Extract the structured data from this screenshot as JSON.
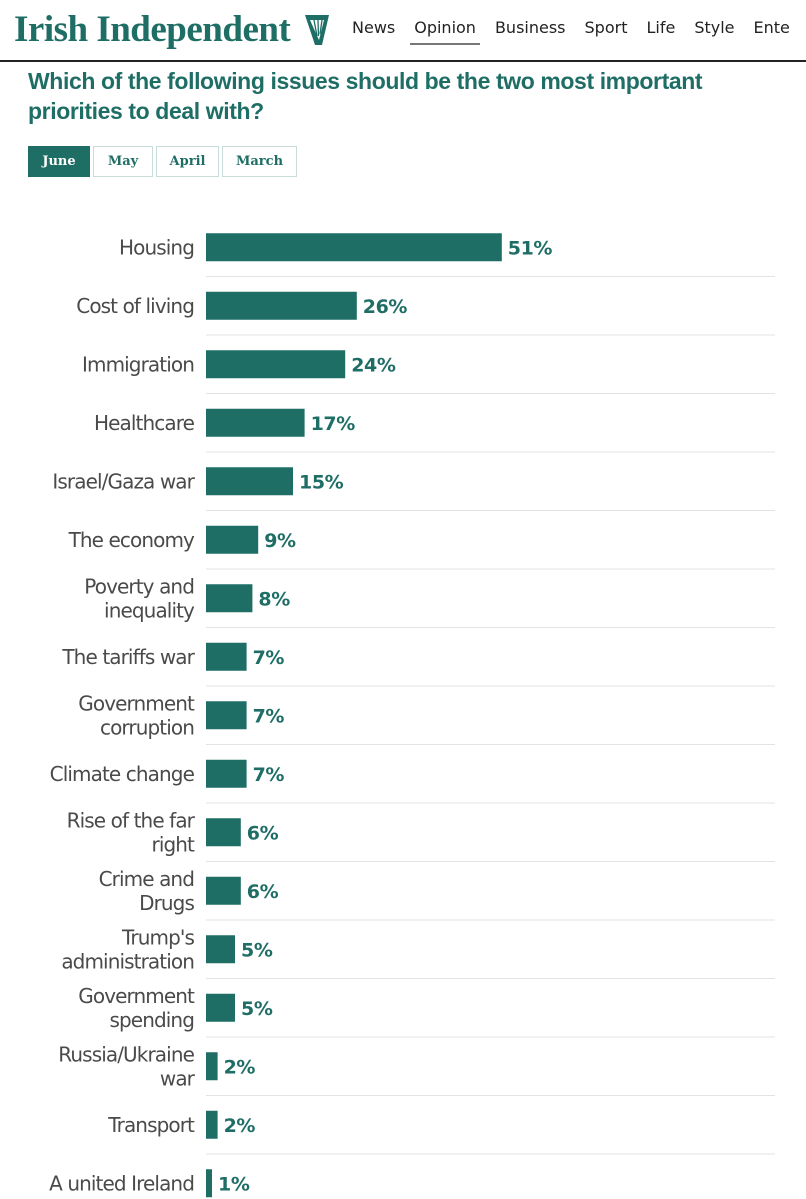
{
  "masthead": {
    "logo_text": "Irish Independent",
    "logo_icon": "harp-icon",
    "nav": [
      "News",
      "Opinion",
      "Business",
      "Sport",
      "Life",
      "Style",
      "Ente"
    ],
    "active_nav": "Opinion"
  },
  "question": "Which of the following issues should be the two most important priorities to deal with?",
  "tabs": [
    "June",
    "May",
    "April",
    "March"
  ],
  "active_tab": "June",
  "colors": {
    "brand": "#1f6e66",
    "bar": "#1f6e66",
    "divider": "#e3e3e3"
  },
  "chart_data": {
    "type": "bar",
    "orientation": "horizontal",
    "categories": [
      "Housing",
      "Cost of living",
      "Immigration",
      "Healthcare",
      "Israel/Gaza war",
      "The economy",
      "Poverty and inequality",
      "The tariffs war",
      "Government corruption",
      "Climate change",
      "Rise of the far right",
      "Crime and Drugs",
      "Trump's administration",
      "Government spending",
      "Russia/Ukraine war",
      "Transport",
      "A united Ireland"
    ],
    "category_lines": [
      [
        "Housing"
      ],
      [
        "Cost of living"
      ],
      [
        "Immigration"
      ],
      [
        "Healthcare"
      ],
      [
        "Israel/Gaza war"
      ],
      [
        "The economy"
      ],
      [
        "Poverty and",
        "inequality"
      ],
      [
        "The tariffs war"
      ],
      [
        "Government",
        "corruption"
      ],
      [
        "Climate change"
      ],
      [
        "Rise of the far",
        "right"
      ],
      [
        "Crime and",
        "Drugs"
      ],
      [
        "Trump's",
        "administration"
      ],
      [
        "Government",
        "spending"
      ],
      [
        "Russia/Ukraine",
        "war"
      ],
      [
        "Transport"
      ],
      [
        "A united Ireland"
      ]
    ],
    "values": [
      51,
      26,
      24,
      17,
      15,
      9,
      8,
      7,
      7,
      7,
      6,
      6,
      5,
      5,
      2,
      2,
      1
    ],
    "value_labels": [
      "51%",
      "26%",
      "24%",
      "17%",
      "15%",
      "9%",
      "8%",
      "7%",
      "7%",
      "7%",
      "6%",
      "6%",
      "5%",
      "5%",
      "2%",
      "2%",
      "1%"
    ],
    "unit": "%",
    "xlim": [
      0,
      100
    ],
    "grid": false,
    "legend": "none"
  }
}
